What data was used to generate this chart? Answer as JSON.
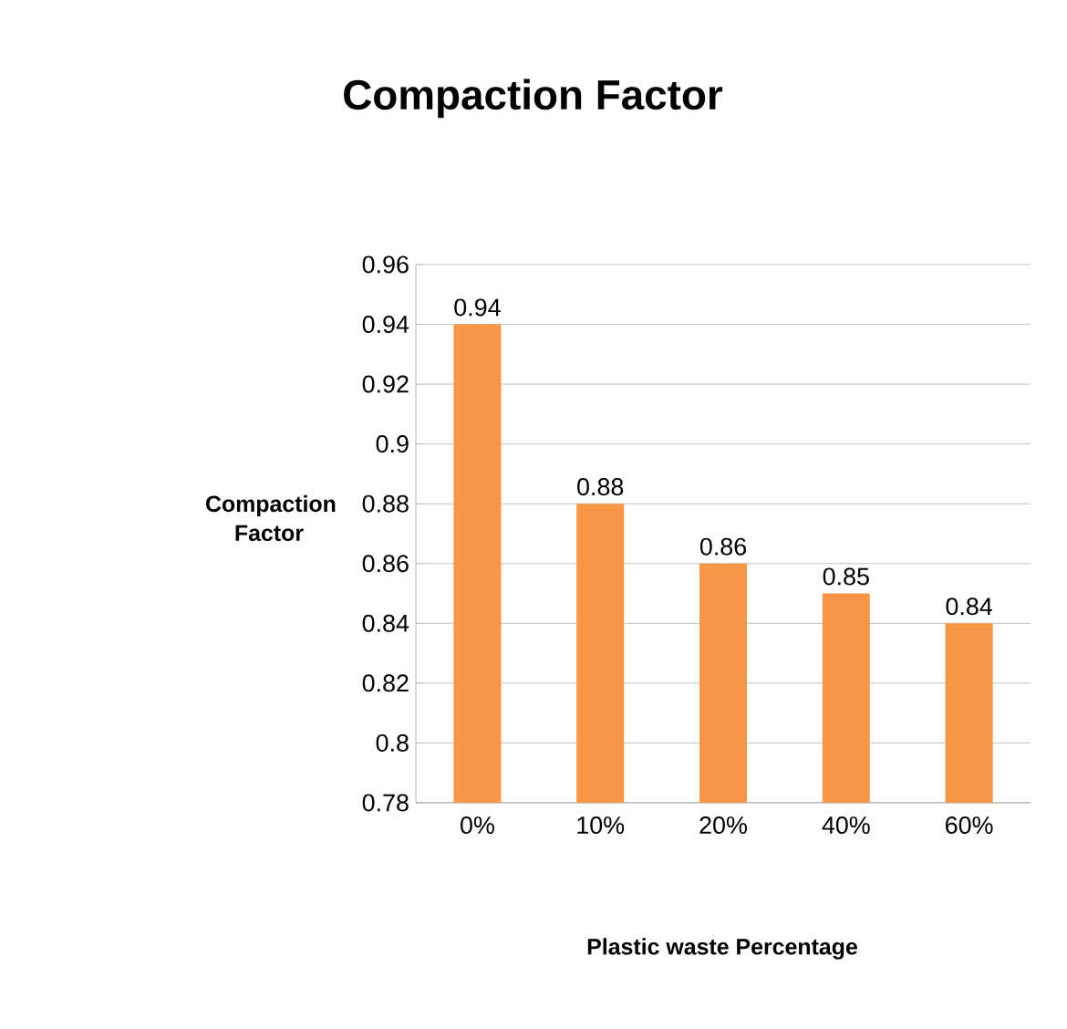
{
  "chart_data": {
    "type": "bar",
    "title": "Compaction Factor",
    "xlabel": "Plastic waste Percentage",
    "ylabel": "Compaction Factor",
    "categories": [
      "0%",
      "10%",
      "20%",
      "40%",
      "60%"
    ],
    "values": [
      0.94,
      0.88,
      0.86,
      0.85,
      0.84
    ],
    "color": "#f79646",
    "ylim": [
      0.78,
      0.96
    ],
    "yticks": [
      0.78,
      0.8,
      0.82,
      0.84,
      0.86,
      0.88,
      0.9,
      0.92,
      0.94,
      0.96
    ],
    "grid": "y",
    "data_labels": true
  }
}
